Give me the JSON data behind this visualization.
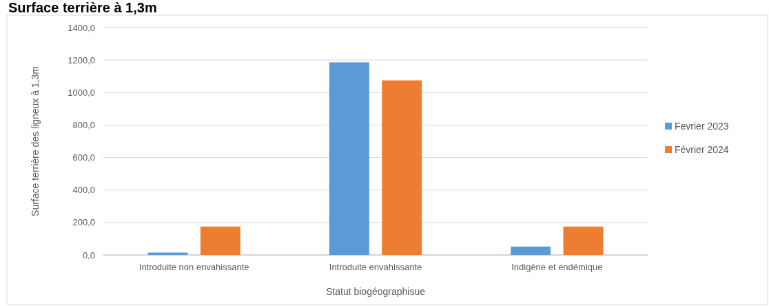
{
  "chart_data": {
    "type": "bar",
    "title": "Surface terrière à 1,3m",
    "xlabel": "Statut biogéographisue",
    "ylabel": "Surface terrière  des ligneux à 1,3m",
    "categories": [
      "Introduite non envahissante",
      "Introduite envahissante",
      "Indigène et endémique"
    ],
    "series": [
      {
        "name": "Fevrier 2023",
        "color": "#5b9bd5",
        "values": [
          15,
          1186,
          52
        ]
      },
      {
        "name": "Février 2024",
        "color": "#ed7d31",
        "values": [
          175,
          1075,
          175
        ]
      }
    ],
    "ylim": [
      0,
      1400
    ],
    "yticks": [
      {
        "value": 0,
        "label": "0,0"
      },
      {
        "value": 200,
        "label": "200,0"
      },
      {
        "value": 400,
        "label": "400,0"
      },
      {
        "value": 600,
        "label": "600,0"
      },
      {
        "value": 800,
        "label": "800,0"
      },
      {
        "value": 1000,
        "label": "1000,0"
      },
      {
        "value": 1200,
        "label": "1200,0"
      },
      {
        "value": 1400,
        "label": "1400,0"
      }
    ],
    "grid": "y",
    "legend": "right"
  }
}
